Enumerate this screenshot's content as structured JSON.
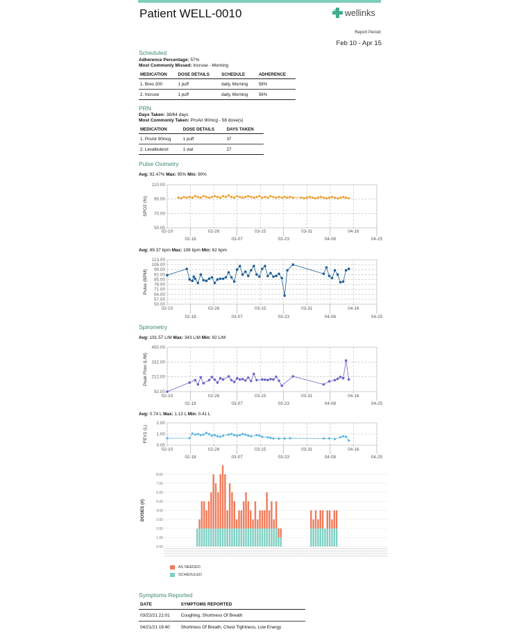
{
  "header": {
    "title": "Patient WELL-0010",
    "logo_text": "wellinks",
    "report_period_label": "Report Period:",
    "report_period": "Feb 10 - Apr 15"
  },
  "scheduled": {
    "heading": "Scheduled",
    "adherence_label": "Adherence Percentage:",
    "adherence_value": "57%",
    "missed_label": "Most Commonly Missed:",
    "missed_value": "Incruse - Morning",
    "columns": [
      "MEDICATION",
      "DOSE DETAILS",
      "SCHEDULE",
      "ADHERENCE"
    ],
    "rows": [
      [
        "1. Breo 200",
        "1 puff",
        "daily, Morning",
        "58%"
      ],
      [
        "2. Incruse",
        "1 puff",
        "daily, Morning",
        "56%"
      ]
    ]
  },
  "prn": {
    "heading": "PRN",
    "days_label": "Days Taken:",
    "days_value": "38/64 days",
    "most_label": "Most Commonly Taken:",
    "most_value": "ProAir 90mcg - 58 dose(s)",
    "columns": [
      "MEDICATION",
      "DOSE DETAILS",
      "DAYS TAKEN"
    ],
    "rows": [
      [
        "1. ProAir 90mcg",
        "1 puff",
        "37"
      ],
      [
        "2. Levalbuterol",
        "1 vial",
        "27"
      ]
    ]
  },
  "pulse_ox": {
    "heading": "Pulse Oximetry"
  },
  "spirometry": {
    "heading": "Spirometry"
  },
  "symptoms": {
    "heading": "Symptoms Reported",
    "columns": [
      "DATE",
      "SYMPTOMS REPORTED"
    ],
    "rows": [
      [
        "03/22/21 21:01",
        "Coughing, Shortness Of Breath"
      ],
      [
        "04/21/21 19:40",
        "Shortness Of Breath, Chest Tightness, Low Energy"
      ]
    ]
  },
  "colors": {
    "accent": "#3a8a72",
    "spo2": "#f0a030",
    "pulse": "#1f5f99",
    "peak": "#6a64c8",
    "fev1": "#5ab4e0",
    "as_needed": "#f07a5a",
    "scheduled": "#7fd0c4"
  },
  "chart_data": [
    {
      "type": "line",
      "stat_text": {
        "Avg": "92.47%",
        "Max": "95%",
        "Min": "90%"
      },
      "ylabel": "SPO2 (%)",
      "yticks": [
        "110.00",
        "90.00",
        "70.00",
        "50.00"
      ],
      "ylim": [
        50,
        110
      ],
      "xticks_upper": [
        "02-10",
        "02-26",
        "03-15",
        "03-31",
        "04-16"
      ],
      "xticks_lower": [
        "02-18",
        "03-07",
        "03-23",
        "04-08",
        "04-25"
      ],
      "series": [
        {
          "points": [
            [
              4,
              92
            ],
            [
              5,
              91
            ],
            [
              6,
              93
            ],
            [
              7,
              92
            ],
            [
              8,
              93
            ],
            [
              9,
              92
            ],
            [
              10,
              94
            ],
            [
              11,
              93
            ],
            [
              12,
              92
            ],
            [
              13,
              94
            ],
            [
              14,
              93
            ],
            [
              15,
              92
            ],
            [
              16,
              93
            ],
            [
              17,
              94
            ],
            [
              18,
              93
            ],
            [
              19,
              92
            ],
            [
              20,
              94
            ],
            [
              21,
              93
            ],
            [
              22,
              95
            ],
            [
              23,
              93
            ],
            [
              24,
              92
            ],
            [
              25,
              94
            ],
            [
              26,
              93
            ],
            [
              27,
              92
            ],
            [
              28,
              93
            ],
            [
              29,
              94
            ],
            [
              30,
              93
            ],
            [
              31,
              92
            ],
            [
              32,
              93
            ],
            [
              33,
              94
            ],
            [
              34,
              92
            ],
            [
              35,
              93
            ],
            [
              36,
              92
            ],
            [
              37,
              94
            ],
            [
              38,
              93
            ],
            [
              39,
              92
            ],
            [
              40,
              93
            ],
            [
              41,
              92
            ],
            [
              42,
              93
            ],
            [
              43,
              92
            ],
            [
              44,
              93
            ],
            [
              45,
              92
            ],
            [
              48,
              92
            ],
            [
              49,
              91
            ],
            [
              50,
              92
            ],
            [
              51,
              93
            ],
            [
              52,
              92
            ],
            [
              53,
              91
            ],
            [
              54,
              92
            ],
            [
              55,
              93
            ],
            [
              56,
              92
            ],
            [
              57,
              91
            ],
            [
              58,
              92
            ],
            [
              59,
              93
            ],
            [
              60,
              92
            ],
            [
              61,
              91
            ],
            [
              62,
              92
            ],
            [
              63,
              93
            ],
            [
              64,
              92
            ],
            [
              65,
              91
            ]
          ]
        }
      ]
    },
    {
      "type": "line",
      "stat_text": {
        "Avg": "89.37 bpm",
        "Max": "108 bpm",
        "Min": "62 bpm"
      },
      "ylabel": "Pulse (BPM)",
      "yticks": [
        "113.00",
        "106.00",
        "99.00",
        "92.00",
        "85.00",
        "78.00",
        "71.00",
        "64.00",
        "57.00",
        "50.00"
      ],
      "ylim": [
        50,
        113
      ],
      "xticks_upper": [
        "02-10",
        "02-26",
        "03-15",
        "03-31",
        "04-16"
      ],
      "xticks_lower": [
        "02-18",
        "03-07",
        "03-23",
        "04-08",
        "04-25"
      ],
      "series": [
        {
          "points": [
            [
              0,
              91
            ],
            [
              7,
              100
            ],
            [
              8,
              85
            ],
            [
              9,
              83
            ],
            [
              9.5,
              89
            ],
            [
              10,
              86
            ],
            [
              11,
              80
            ],
            [
              12,
              92
            ],
            [
              13,
              84
            ],
            [
              14,
              83
            ],
            [
              15,
              86
            ],
            [
              16,
              88
            ],
            [
              17,
              80
            ],
            [
              18,
              85
            ],
            [
              19,
              86
            ],
            [
              20,
              86
            ],
            [
              21,
              88
            ],
            [
              22,
              95
            ],
            [
              23,
              88
            ],
            [
              24,
              82
            ],
            [
              25,
              99
            ],
            [
              26,
              104
            ],
            [
              27,
              92
            ],
            [
              28,
              96
            ],
            [
              29,
              90
            ],
            [
              30,
              98
            ],
            [
              31,
              104
            ],
            [
              32,
              92
            ],
            [
              33,
              89
            ],
            [
              34,
              100
            ],
            [
              35,
              104
            ],
            [
              36,
              90
            ],
            [
              37,
              94
            ],
            [
              38,
              89
            ],
            [
              39,
              90
            ],
            [
              40,
              93
            ],
            [
              41,
              87
            ],
            [
              42,
              62
            ],
            [
              43,
              98
            ],
            [
              45,
              106
            ],
            [
              56,
              93
            ],
            [
              57,
              102
            ],
            [
              58,
              90
            ],
            [
              59,
              87
            ],
            [
              60,
              98
            ],
            [
              61,
              92
            ],
            [
              62,
              81
            ],
            [
              63,
              82
            ],
            [
              64,
              98
            ],
            [
              65,
              100
            ]
          ]
        }
      ]
    },
    {
      "type": "line",
      "stat_text": {
        "Avg": "191.57 L/M",
        "Max": "343 L/M",
        "Min": "92 L/M"
      },
      "ylabel": "Peak Flow (L/M)",
      "yticks": [
        "450.00",
        "332.00",
        "212.00",
        "92.00"
      ],
      "ylim": [
        92,
        450
      ],
      "xticks_upper": [
        "02-10",
        "02-26",
        "03-15",
        "03-31",
        "04-16"
      ],
      "xticks_lower": [
        "02-18",
        "03-07",
        "03-23",
        "04-08",
        "04-25"
      ],
      "series": [
        {
          "points": [
            [
              0,
              92
            ],
            [
              8,
              165
            ],
            [
              10,
              185
            ],
            [
              11,
              150
            ],
            [
              12,
              208
            ],
            [
              13,
              160
            ],
            [
              15,
              185
            ],
            [
              16,
              210
            ],
            [
              17,
              188
            ],
            [
              18,
              165
            ],
            [
              19,
              200
            ],
            [
              20,
              190
            ],
            [
              22,
              215
            ],
            [
              23,
              185
            ],
            [
              24,
              170
            ],
            [
              25,
              200
            ],
            [
              26,
              190
            ],
            [
              27,
              193
            ],
            [
              28,
              182
            ],
            [
              29,
              205
            ],
            [
              30,
              178
            ],
            [
              31,
              235
            ],
            [
              32,
              185
            ],
            [
              34,
              190
            ],
            [
              35,
              188
            ],
            [
              36,
              186
            ],
            [
              37,
              193
            ],
            [
              38,
              190
            ],
            [
              39,
              212
            ],
            [
              40,
              180
            ],
            [
              41,
              140
            ],
            [
              45,
              215
            ],
            [
              56,
              150
            ],
            [
              58,
              175
            ],
            [
              60,
              185
            ],
            [
              61,
              195
            ],
            [
              62,
              210
            ],
            [
              63,
              200
            ],
            [
              64,
              343
            ],
            [
              65,
              190
            ]
          ]
        }
      ]
    },
    {
      "type": "line",
      "stat_text": {
        "Avg": "0.74 L",
        "Max": "1.13 L",
        "Min": "0.41 L"
      },
      "ylabel": "FEV1 (L)",
      "yticks": [
        "2.00",
        "1.00",
        "0.00"
      ],
      "ylim": [
        0,
        2
      ],
      "xticks_upper": [
        "02-10",
        "02-26",
        "03-15",
        "03-31",
        "04-16"
      ],
      "xticks_lower": [
        "02-18",
        "03-07",
        "03-23",
        "04-08",
        "04-25"
      ],
      "series": [
        {
          "points": [
            [
              0,
              0.62
            ],
            [
              8,
              0.62
            ],
            [
              9,
              1.05
            ],
            [
              10,
              0.95
            ],
            [
              11,
              1.0
            ],
            [
              12,
              0.9
            ],
            [
              13,
              0.95
            ],
            [
              14,
              1.1
            ],
            [
              15,
              1.0
            ],
            [
              16,
              0.85
            ],
            [
              17,
              0.9
            ],
            [
              18,
              0.8
            ],
            [
              19,
              0.75
            ],
            [
              20,
              0.85
            ],
            [
              22,
              0.95
            ],
            [
              23,
              1.0
            ],
            [
              24,
              0.9
            ],
            [
              25,
              0.85
            ],
            [
              26,
              0.9
            ],
            [
              27,
              1.0
            ],
            [
              28,
              0.95
            ],
            [
              29,
              0.85
            ],
            [
              30,
              0.8
            ],
            [
              32,
              0.9
            ],
            [
              33,
              0.85
            ],
            [
              34,
              0.75
            ],
            [
              36,
              0.7
            ],
            [
              37,
              0.65
            ],
            [
              38,
              0.6
            ],
            [
              40,
              0.58
            ],
            [
              42,
              0.6
            ],
            [
              44,
              0.62
            ],
            [
              56,
              0.6
            ],
            [
              58,
              0.6
            ],
            [
              60,
              0.55
            ],
            [
              62,
              0.7
            ],
            [
              63,
              0.8
            ],
            [
              64,
              0.75
            ],
            [
              65,
              0.41
            ]
          ]
        }
      ]
    },
    {
      "type": "bar",
      "ylabel": "DOSES (#)",
      "yticks": [
        "8.00",
        "7.00",
        "6.00",
        "5.00",
        "4.00",
        "3.00",
        "2.00",
        "1.00",
        "0.00"
      ],
      "ylim": [
        0,
        8
      ],
      "legend": [
        "AS NEEDED",
        "SCHEDULED"
      ],
      "series": [
        {
          "name": "SCHEDULED",
          "values": [
            2,
            2,
            2,
            2,
            2,
            2,
            2,
            2,
            2,
            2,
            2,
            2,
            2,
            2,
            2,
            2,
            2,
            2,
            2,
            2,
            2,
            2,
            2,
            2,
            2,
            2,
            2,
            2,
            2,
            2,
            2,
            2,
            2,
            2,
            2,
            1,
            1,
            0,
            0,
            0,
            0,
            0,
            0,
            0,
            0,
            0,
            0,
            0,
            0,
            2,
            2,
            2,
            2,
            2,
            2,
            2,
            2,
            2,
            2,
            2,
            2
          ]
        },
        {
          "name": "AS NEEDED",
          "values": [
            0,
            1,
            3,
            3,
            2,
            3,
            4,
            6,
            5,
            4,
            6,
            7,
            6,
            2,
            5,
            4,
            3,
            1,
            2,
            2,
            3,
            4,
            3,
            2,
            1,
            3,
            1,
            2,
            2,
            2,
            4,
            2,
            3,
            1,
            3,
            1,
            1,
            0,
            0,
            0,
            0,
            0,
            0,
            0,
            0,
            0,
            0,
            0,
            0,
            2,
            1,
            2,
            1,
            2,
            2,
            0,
            2,
            2,
            1,
            2,
            2
          ]
        }
      ]
    }
  ]
}
